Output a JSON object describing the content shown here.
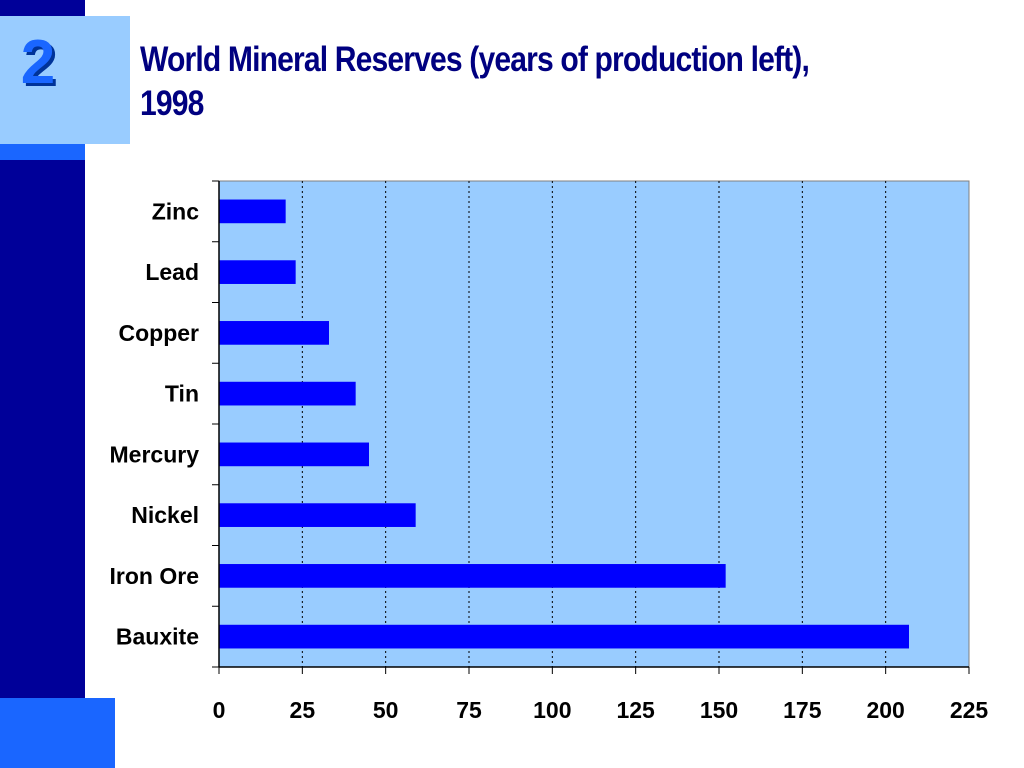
{
  "slide": {
    "number": "2",
    "title": "World Mineral Reserves (years of production left), 1998"
  },
  "colors": {
    "sidebar": "#000099",
    "accent": "#1a66ff",
    "number_box": "#99ccff",
    "plot_background": "#99ccff",
    "bar": "#0000ff",
    "title": "#000080"
  },
  "chart_data": {
    "type": "bar",
    "orientation": "horizontal",
    "title": "World Mineral Reserves (years of production left), 1998",
    "categories": [
      "Zinc",
      "Lead",
      "Copper",
      "Tin",
      "Mercury",
      "Nickel",
      "Iron Ore",
      "Bauxite"
    ],
    "values": [
      20,
      23,
      33,
      41,
      45,
      59,
      152,
      207
    ],
    "xlim": [
      0,
      225
    ],
    "x_ticks": [
      "0",
      "25",
      "50",
      "75",
      "100",
      "125",
      "150",
      "175",
      "200",
      "225"
    ],
    "grid": "vertical dashed",
    "legend": "none"
  }
}
